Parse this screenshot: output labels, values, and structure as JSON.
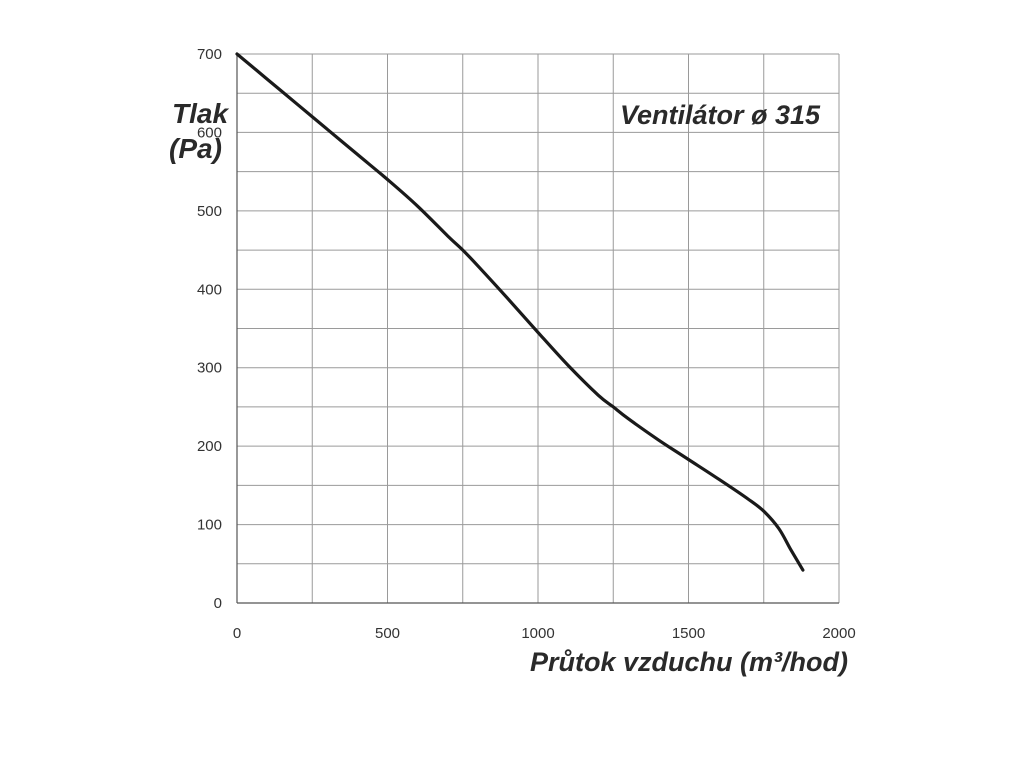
{
  "chart_data": {
    "type": "line",
    "title": "Ventilátor ø 315",
    "xlabel": "Průtok vzduchu (m³/hod)",
    "ylabel_line1": "Tlak",
    "ylabel_line2": "(Pa)",
    "xlim": [
      0,
      2000
    ],
    "ylim": [
      0,
      700
    ],
    "xticks": [
      0,
      500,
      1000,
      1500,
      2000
    ],
    "yticks": [
      0,
      100,
      200,
      300,
      400,
      500,
      600,
      700
    ],
    "grid": true,
    "grid_step_x": 250,
    "grid_step_y": 50,
    "line_color": "#1a1a1a",
    "series": [
      {
        "x": [
          0,
          100,
          200,
          300,
          400,
          500,
          600,
          700,
          750,
          800,
          900,
          1000,
          1100,
          1200,
          1250,
          1300,
          1400,
          1500,
          1600,
          1700,
          1750,
          1800,
          1840,
          1880
        ],
        "values": [
          700,
          668,
          636,
          604,
          572,
          540,
          506,
          468,
          450,
          430,
          388,
          345,
          303,
          265,
          250,
          235,
          208,
          183,
          158,
          132,
          117,
          95,
          68,
          42
        ]
      }
    ]
  }
}
